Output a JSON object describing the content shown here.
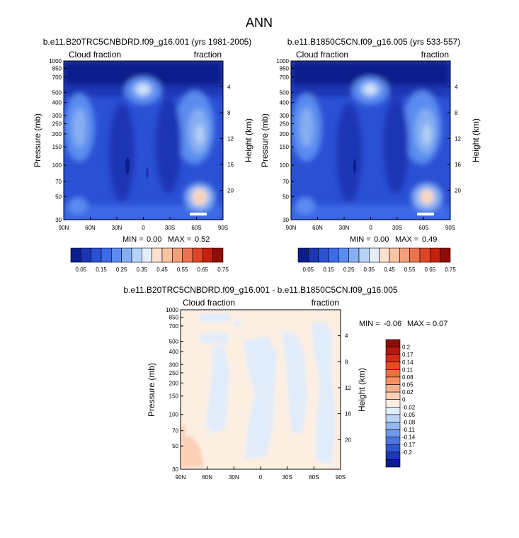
{
  "page_title": "ANN",
  "chart_data": [
    {
      "type": "heatmap",
      "title": "b.e11.B20TRC5CNBDRD.f09_g16.001 (yrs 1981-2005)",
      "left_label": "Cloud fraction",
      "right_label": "fraction",
      "xlabel": "",
      "ylabel": "Pressure (mb)",
      "ylabel_right": "Height (km)",
      "x_ticks": [
        "90N",
        "60N",
        "30N",
        "0",
        "30S",
        "60S",
        "90S"
      ],
      "y_ticks": [
        "30",
        "50",
        "70",
        "100",
        "150",
        "200",
        "250",
        "300",
        "400",
        "500",
        "700",
        "850",
        "1000"
      ],
      "y_right_ticks": [
        "20",
        "16",
        "12",
        "8",
        "4"
      ],
      "xlim": [
        90,
        -90
      ],
      "ylim": [
        1000,
        30
      ],
      "y_scale": "log",
      "min_label": "MIN =",
      "min_value": "0.00",
      "max_label": "MAX =",
      "max_value": "0.52",
      "colorbar": {
        "orientation": "horizontal",
        "labels": [
          "0.05",
          "0.15",
          "0.25",
          "0.35",
          "0.45",
          "0.55",
          "0.65",
          "0.75"
        ],
        "colors": [
          "#0b1c8c",
          "#1b36b5",
          "#2a50d4",
          "#3c6ae8",
          "#5a8cf0",
          "#86aff2",
          "#b6d2f6",
          "#e4eefb",
          "#fde1cf",
          "#f9c3a4",
          "#f4a07a",
          "#ec7250",
          "#de4428",
          "#c4210f",
          "#8f0d08"
        ]
      },
      "min": 0.0,
      "max": 0.52
    },
    {
      "type": "heatmap",
      "title": "b.e11.B1850C5CN.f09_g16.005 (yrs 533-557)",
      "left_label": "Cloud fraction",
      "right_label": "fraction",
      "xlabel": "",
      "ylabel": "Pressure (mb)",
      "ylabel_right": "Height (km)",
      "x_ticks": [
        "90N",
        "60N",
        "30N",
        "0",
        "30S",
        "60S",
        "90S"
      ],
      "y_ticks": [
        "30",
        "50",
        "70",
        "100",
        "150",
        "200",
        "250",
        "300",
        "400",
        "500",
        "700",
        "850",
        "1000"
      ],
      "y_right_ticks": [
        "20",
        "16",
        "12",
        "8",
        "4"
      ],
      "xlim": [
        90,
        -90
      ],
      "ylim": [
        1000,
        30
      ],
      "y_scale": "log",
      "min_label": "MIN =",
      "min_value": "0.00",
      "max_label": "MAX =",
      "max_value": "0.49",
      "colorbar": {
        "orientation": "horizontal",
        "labels": [
          "0.05",
          "0.15",
          "0.25",
          "0.35",
          "0.45",
          "0.55",
          "0.65",
          "0.75"
        ],
        "colors": [
          "#0b1c8c",
          "#1b36b5",
          "#2a50d4",
          "#3c6ae8",
          "#5a8cf0",
          "#86aff2",
          "#b6d2f6",
          "#e4eefb",
          "#fde1cf",
          "#f9c3a4",
          "#f4a07a",
          "#ec7250",
          "#de4428",
          "#c4210f",
          "#8f0d08"
        ]
      },
      "min": 0.0,
      "max": 0.49
    },
    {
      "type": "heatmap",
      "title": "b.e11.B20TRC5CNBDRD.f09_g16.001 - b.e11.B1850C5CN.f09_g16.005",
      "left_label": "Cloud fraction",
      "right_label": "fraction",
      "xlabel": "",
      "ylabel": "Pressure (mb)",
      "ylabel_right": "Height (km)",
      "x_ticks": [
        "90N",
        "60N",
        "30N",
        "0",
        "30S",
        "60S",
        "90S"
      ],
      "y_ticks": [
        "30",
        "50",
        "70",
        "100",
        "150",
        "200",
        "250",
        "300",
        "400",
        "500",
        "700",
        "850",
        "1000"
      ],
      "y_right_ticks": [
        "20",
        "16",
        "12",
        "8",
        "4"
      ],
      "xlim": [
        90,
        -90
      ],
      "ylim": [
        1000,
        30
      ],
      "y_scale": "log",
      "min_label": "MIN =",
      "min_value": "-0.06",
      "max_label": "MAX =",
      "max_value": "0.07",
      "colorbar": {
        "orientation": "vertical",
        "labels": [
          "0.2",
          "0.17",
          "0.14",
          "0.11",
          "0.08",
          "0.05",
          "0.02",
          "0",
          "-0.02",
          "-0.05",
          "-0.08",
          "-0.11",
          "-0.14",
          "-0.17",
          "-0.2"
        ],
        "colors": [
          "#8a0d0a",
          "#b3190f",
          "#d42c12",
          "#ec4a1f",
          "#f56d3c",
          "#f99063",
          "#fbb08c",
          "#fdd0b5",
          "#fdeee2",
          "#e2edfb",
          "#bcd4f6",
          "#94b7f1",
          "#6f97ea",
          "#4c76e0",
          "#2f55d1",
          "#1a38b0",
          "#0b1c8a"
        ]
      },
      "min": -0.06,
      "max": 0.07
    }
  ]
}
